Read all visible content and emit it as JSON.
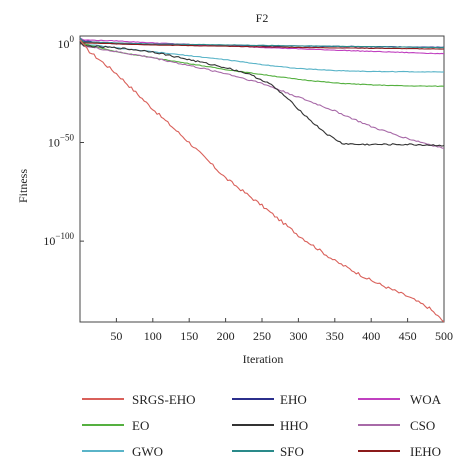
{
  "chart_data": {
    "type": "line",
    "title": "F2",
    "xlabel": "Iteration",
    "ylabel": "Fitness",
    "xlim": [
      0,
      500
    ],
    "ylim_log10": [
      -141,
      4
    ],
    "y_scale": "log",
    "grid": false,
    "legend_position": "bottom",
    "x_ticks": [
      {
        "value": 50,
        "label": "50"
      },
      {
        "value": 100,
        "label": "100"
      },
      {
        "value": 150,
        "label": "150"
      },
      {
        "value": 200,
        "label": "200"
      },
      {
        "value": 250,
        "label": "250"
      },
      {
        "value": 300,
        "label": "300"
      },
      {
        "value": 350,
        "label": "350"
      },
      {
        "value": 400,
        "label": "400"
      },
      {
        "value": 450,
        "label": "450"
      },
      {
        "value": 500,
        "label": "500"
      }
    ],
    "y_ticks": [
      {
        "log10": 0,
        "base": "10",
        "exp": "0"
      },
      {
        "log10": -50,
        "base": "10",
        "exp": "−50"
      },
      {
        "log10": -100,
        "base": "10",
        "exp": "−100"
      }
    ],
    "series": [
      {
        "name": "SRGS-EHO",
        "color": "#d9605a",
        "jitter": 1.5,
        "x": [
          0,
          10,
          50,
          100,
          150,
          200,
          250,
          300,
          350,
          400,
          450,
          480,
          500
        ],
        "log10_y": [
          2,
          -3,
          -15,
          -33,
          -50,
          -68,
          -82,
          -97,
          -110,
          -120,
          -128,
          -134,
          -141
        ]
      },
      {
        "name": "EHO",
        "color": "#2b2f8c",
        "jitter": 0.3,
        "x": [
          0,
          5,
          50,
          100,
          200,
          300,
          400,
          500
        ],
        "log10_y": [
          3,
          1.5,
          0,
          -0.3,
          -0.8,
          -1.1,
          -1.4,
          -1.7
        ]
      },
      {
        "name": "WOA",
        "color": "#c040c0",
        "jitter": 0.3,
        "x": [
          0,
          5,
          50,
          100,
          200,
          300,
          400,
          500
        ],
        "log10_y": [
          3,
          2,
          1.5,
          0.5,
          -1,
          -2.5,
          -3.8,
          -5
        ]
      },
      {
        "name": "EO",
        "color": "#55b040",
        "jitter": 0.3,
        "x": [
          0,
          5,
          50,
          100,
          150,
          200,
          250,
          300,
          350,
          400,
          450,
          500
        ],
        "log10_y": [
          2,
          0,
          -4,
          -7,
          -10,
          -13,
          -15.5,
          -18,
          -19.8,
          -20.8,
          -21.3,
          -21.5
        ]
      },
      {
        "name": "HHO",
        "color": "#333333",
        "jitter": 0.8,
        "x": [
          0,
          5,
          50,
          100,
          150,
          200,
          230,
          260,
          280,
          300,
          320,
          340,
          360,
          380,
          400,
          450,
          500
        ],
        "log10_y": [
          1,
          -1,
          -2,
          -4,
          -8,
          -12,
          -15,
          -20,
          -26,
          -33,
          -40,
          -46,
          -50.5,
          -51,
          -51,
          -51,
          -51.5
        ]
      },
      {
        "name": "CSO",
        "color": "#a86aa8",
        "jitter": 0.8,
        "x": [
          0,
          5,
          50,
          100,
          150,
          200,
          250,
          300,
          350,
          400,
          450,
          500
        ],
        "log10_y": [
          2,
          -1,
          -4,
          -7,
          -11,
          -15,
          -20,
          -27,
          -34,
          -42,
          -48,
          -53
        ]
      },
      {
        "name": "GWO",
        "color": "#5ab4c8",
        "jitter": 0.3,
        "x": [
          0,
          5,
          50,
          100,
          150,
          200,
          250,
          300,
          350,
          400,
          450,
          500
        ],
        "log10_y": [
          2,
          0,
          -2,
          -4,
          -6,
          -8,
          -10.5,
          -12.5,
          -13.5,
          -14,
          -14.1,
          -14.2
        ]
      },
      {
        "name": "SFO",
        "color": "#2a8a8a",
        "jitter": 0.2,
        "x": [
          0,
          5,
          100,
          200,
          300,
          400,
          500
        ],
        "log10_y": [
          3,
          1,
          0,
          -0.5,
          -1,
          -1.4,
          -1.9
        ]
      },
      {
        "name": "IEHO",
        "color": "#8b1a1a",
        "jitter": 0.2,
        "x": [
          0,
          5,
          100,
          200,
          300,
          400,
          500
        ],
        "log10_y": [
          2,
          0.5,
          -0.5,
          -1.2,
          -1.8,
          -2.2,
          -2.6
        ]
      }
    ]
  }
}
